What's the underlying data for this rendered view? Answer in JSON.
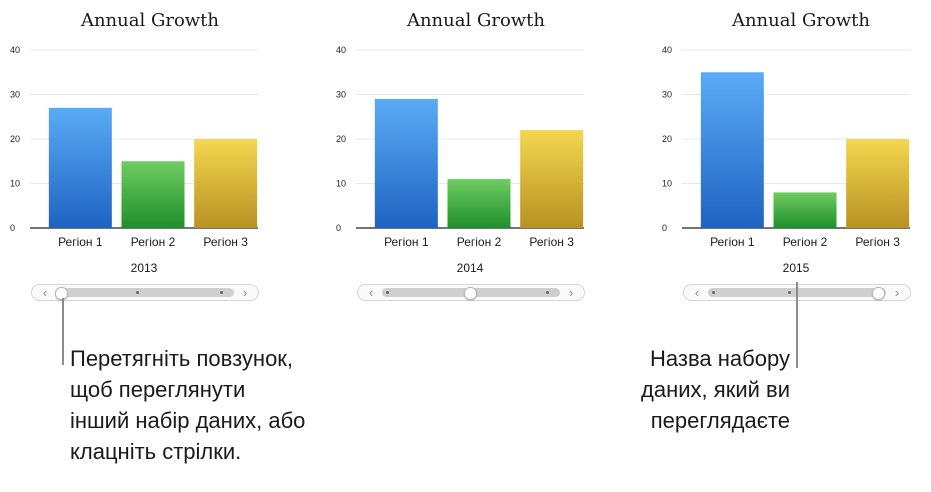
{
  "panels": [
    {
      "chart_title": "Annual Growth",
      "dataset_name": "2013",
      "slider_nav": {
        "prev": "‹",
        "next": "›"
      },
      "slider_position": 0.0,
      "chart_data": {
        "type": "bar",
        "title": "Annual Growth",
        "categories": [
          "Регіон 1",
          "Регіон 2",
          "Регіон 3"
        ],
        "values": [
          27,
          15,
          20
        ],
        "ylim": [
          0,
          40
        ],
        "yticks": [
          0,
          10,
          20,
          30,
          40
        ],
        "grid": true,
        "colors": [
          "#3b82e0",
          "#4bb64a",
          "#e5c03a"
        ]
      }
    },
    {
      "chart_title": "Annual Growth",
      "dataset_name": "2014",
      "slider_nav": {
        "prev": "‹",
        "next": "›"
      },
      "slider_position": 0.5,
      "chart_data": {
        "type": "bar",
        "title": "Annual Growth",
        "categories": [
          "Регіон 1",
          "Регіон 2",
          "Регіон 3"
        ],
        "values": [
          29,
          11,
          22
        ],
        "ylim": [
          0,
          40
        ],
        "yticks": [
          0,
          10,
          20,
          30,
          40
        ],
        "grid": true,
        "colors": [
          "#3b82e0",
          "#4bb64a",
          "#e5c03a"
        ]
      }
    },
    {
      "chart_title": "Annual Growth",
      "dataset_name": "2015",
      "slider_nav": {
        "prev": "‹",
        "next": "›"
      },
      "slider_position": 1.0,
      "chart_data": {
        "type": "bar",
        "title": "Annual Growth",
        "categories": [
          "Регіон 1",
          "Регіон 2",
          "Регіон 3"
        ],
        "values": [
          35,
          8,
          20
        ],
        "ylim": [
          0,
          40
        ],
        "yticks": [
          0,
          10,
          20,
          30,
          40
        ],
        "grid": true,
        "colors": [
          "#3b82e0",
          "#4bb64a",
          "#e5c03a"
        ]
      }
    }
  ],
  "callouts": {
    "slider": "Перетягніть повзунок,\nщоб переглянути\nінший набір даних, або\nклацніть стрілки.",
    "dataset": "Назва набору\nданих, який ви\nпереглядаєте"
  }
}
